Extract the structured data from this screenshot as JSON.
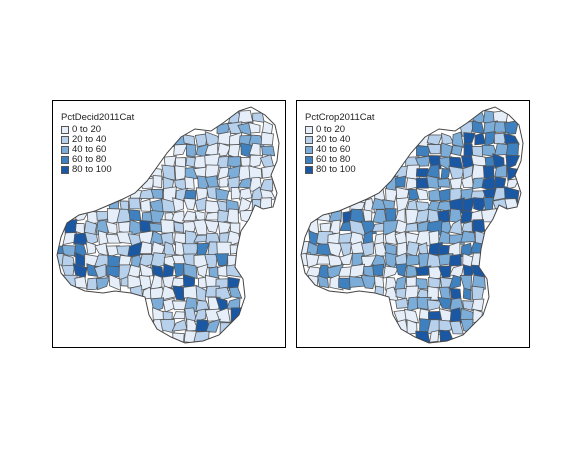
{
  "maps": [
    {
      "title": "PctDecid2011Cat",
      "legend": [
        "0 to 20",
        "20 to 40",
        "40 to 60",
        "60 to 80",
        "80 to 100"
      ],
      "colors": [
        "#e6eff9",
        "#b7d1ec",
        "#7cacd8",
        "#3f81bf",
        "#1b58a3"
      ],
      "weights": [
        0.52,
        0.27,
        0.14,
        0.06,
        0.01
      ],
      "high_region": "southwest"
    },
    {
      "title": "PctCrop2011Cat",
      "legend": [
        "0 to 20",
        "20 to 40",
        "40 to 60",
        "60 to 80",
        "80 to 100"
      ],
      "colors": [
        "#e6eff9",
        "#b7d1ec",
        "#7cacd8",
        "#3f81bf",
        "#1b58a3"
      ],
      "weights": [
        0.4,
        0.18,
        0.22,
        0.15,
        0.05
      ],
      "high_region": "northeast"
    }
  ]
}
